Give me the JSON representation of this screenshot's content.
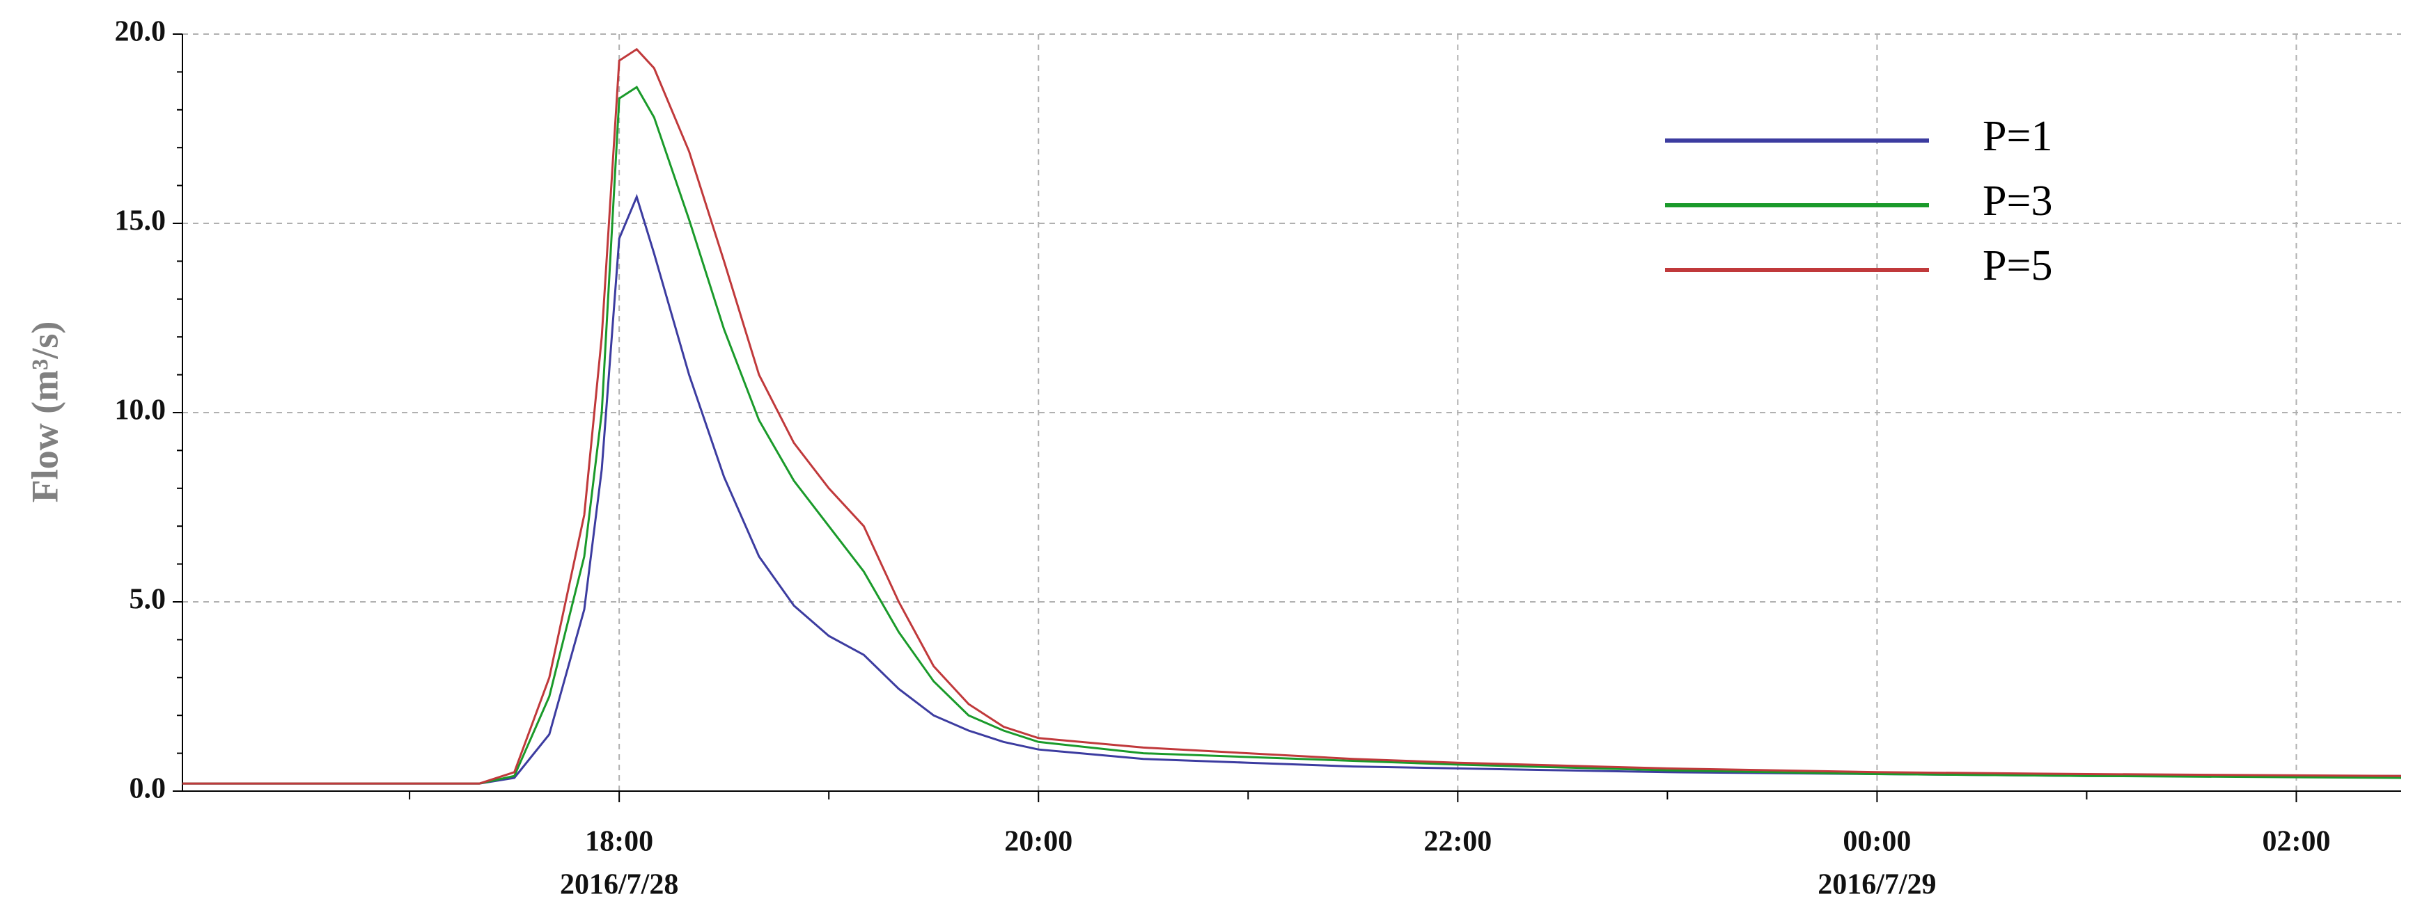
{
  "chart_data": {
    "type": "line",
    "y_label": "Flow (m³/s)",
    "x": [
      "2016-07-28 15:55",
      "2016-07-28 17:20",
      "2016-07-28 17:30",
      "2016-07-28 17:40",
      "2016-07-28 17:50",
      "2016-07-28 17:55",
      "2016-07-28 18:00",
      "2016-07-28 18:05",
      "2016-07-28 18:10",
      "2016-07-28 18:20",
      "2016-07-28 18:30",
      "2016-07-28 18:40",
      "2016-07-28 18:50",
      "2016-07-28 19:00",
      "2016-07-28 19:10",
      "2016-07-28 19:20",
      "2016-07-28 19:30",
      "2016-07-28 19:40",
      "2016-07-28 19:50",
      "2016-07-28 20:00",
      "2016-07-28 20:30",
      "2016-07-28 21:00",
      "2016-07-28 21:30",
      "2016-07-28 22:00",
      "2016-07-28 23:00",
      "2016-07-29 00:00",
      "2016-07-29 01:00",
      "2016-07-29 02:30"
    ],
    "series": [
      {
        "name": "P=1",
        "color": "#3c3ca0",
        "values": [
          0.2,
          0.2,
          0.35,
          1.5,
          4.8,
          8.5,
          14.6,
          15.7,
          14.2,
          11.0,
          8.3,
          6.2,
          4.9,
          4.1,
          3.6,
          2.7,
          2.0,
          1.6,
          1.3,
          1.1,
          0.85,
          0.75,
          0.65,
          0.6,
          0.5,
          0.45,
          0.4,
          0.4
        ]
      },
      {
        "name": "P=3",
        "color": "#1a9a2a",
        "values": [
          0.2,
          0.2,
          0.4,
          2.5,
          6.2,
          10.0,
          18.3,
          18.6,
          17.8,
          15.1,
          12.2,
          9.8,
          8.2,
          7.0,
          5.8,
          4.2,
          2.9,
          2.0,
          1.6,
          1.3,
          1.0,
          0.9,
          0.8,
          0.7,
          0.55,
          0.45,
          0.4,
          0.35
        ]
      },
      {
        "name": "P=5",
        "color": "#c0393b",
        "values": [
          0.2,
          0.2,
          0.5,
          3.0,
          7.3,
          12.0,
          19.3,
          19.6,
          19.1,
          16.9,
          14.0,
          11.0,
          9.2,
          8.0,
          7.0,
          5.0,
          3.3,
          2.3,
          1.7,
          1.4,
          1.15,
          1.0,
          0.85,
          0.75,
          0.6,
          0.5,
          0.45,
          0.4
        ]
      }
    ],
    "xlim": [
      "2016-07-28 15:55",
      "2016-07-29 02:30"
    ],
    "xticks": [
      {
        "value": "2016-07-28 18:00",
        "label": "18:00"
      },
      {
        "value": "2016-07-28 20:00",
        "label": "20:00"
      },
      {
        "value": "2016-07-28 22:00",
        "label": "22:00"
      },
      {
        "value": "2016-07-29 00:00",
        "label": "00:00"
      },
      {
        "value": "2016-07-29 02:00",
        "label": "02:00"
      }
    ],
    "xtick_dates": [
      {
        "value": "2016-07-28 18:00",
        "label": "2016/7/28"
      },
      {
        "value": "2016-07-29 00:00",
        "label": "2016/7/29"
      }
    ],
    "xminor_ticks": [
      "2016-07-28 17:00",
      "2016-07-28 19:00",
      "2016-07-28 21:00",
      "2016-07-28 23:00",
      "2016-07-29 01:00"
    ],
    "ylim": [
      0,
      20
    ],
    "yticks": [
      {
        "value": 0,
        "label": "0.0"
      },
      {
        "value": 5,
        "label": "5.0"
      },
      {
        "value": 10,
        "label": "10.0"
      },
      {
        "value": 15,
        "label": "15.0"
      },
      {
        "value": 20,
        "label": "20.0"
      }
    ],
    "yminor_ticks": [
      1,
      2,
      3,
      4,
      6,
      7,
      8,
      9,
      11,
      12,
      13,
      14,
      16,
      17,
      18,
      19
    ],
    "grid": true,
    "legend": "upper right"
  }
}
